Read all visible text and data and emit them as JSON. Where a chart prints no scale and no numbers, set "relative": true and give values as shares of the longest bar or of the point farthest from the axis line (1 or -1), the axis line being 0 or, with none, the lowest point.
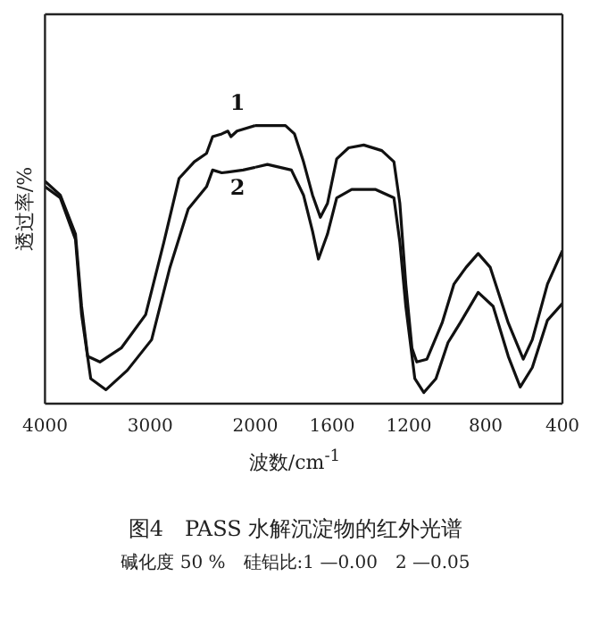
{
  "chart_data": [
    {
      "type": "line",
      "ylabel": "透过率/%",
      "relative": true,
      "xlim": [
        4000,
        2000
      ],
      "xticks": [
        4000,
        3000,
        2000
      ],
      "tick_labels": "x",
      "grid": false,
      "legend": false,
      "marker": "none",
      "line_style": "solid",
      "annotations": [
        "图4　PASS 水解沉淀物的红外光谱",
        "碱化度 50 %　硅铝比:1 —0.00　2 —0.05"
      ],
      "series": [
        {
          "name": "1",
          "color": "#111111",
          "x": [
            4000,
            3855,
            3710,
            3652,
            3594,
            3478,
            3275,
            3043,
            2870,
            2725,
            2580,
            2464,
            2406,
            2319,
            2261,
            2232,
            2174,
            2000
          ],
          "values": [
            0.8,
            0.75,
            0.61,
            0.35,
            0.17,
            0.15,
            0.2,
            0.32,
            0.58,
            0.81,
            0.87,
            0.9,
            0.96,
            0.97,
            0.98,
            0.96,
            0.98,
            1.0
          ]
        },
        {
          "name": "2",
          "color": "#111111",
          "x": [
            4000,
            3855,
            3710,
            3652,
            3565,
            3420,
            3217,
            2986,
            2812,
            2638,
            2464,
            2406,
            2319,
            2116,
            2000
          ],
          "values": [
            0.78,
            0.74,
            0.59,
            0.32,
            0.09,
            0.05,
            0.12,
            0.23,
            0.49,
            0.7,
            0.78,
            0.84,
            0.83,
            0.84,
            0.85
          ]
        }
      ]
    },
    {
      "type": "line",
      "xlabel": "波数/cm$^{-1}$",
      "relative": true,
      "xlim": [
        2000,
        400
      ],
      "xticks": [
        1600,
        1200,
        800,
        400
      ],
      "tick_labels": "x",
      "grid": false,
      "legend": false,
      "marker": "none",
      "line_style": "solid",
      "series": [
        {
          "color": "#111111",
          "x": [
            2000,
            1843,
            1796,
            1749,
            1702,
            1661,
            1624,
            1576,
            1514,
            1435,
            1341,
            1278,
            1247,
            1216,
            1184,
            1159,
            1106,
            1027,
            965,
            902,
            839,
            776,
            682,
            604,
            557,
            478,
            400
          ],
          "values": [
            1.0,
            1.0,
            0.97,
            0.87,
            0.75,
            0.67,
            0.72,
            0.88,
            0.92,
            0.93,
            0.91,
            0.87,
            0.72,
            0.43,
            0.2,
            0.15,
            0.16,
            0.29,
            0.43,
            0.49,
            0.54,
            0.49,
            0.29,
            0.16,
            0.23,
            0.43,
            0.55
          ]
        },
        {
          "color": "#111111",
          "x": [
            2000,
            1937,
            1812,
            1749,
            1702,
            1671,
            1624,
            1576,
            1498,
            1373,
            1278,
            1247,
            1216,
            1169,
            1122,
            1059,
            996,
            933,
            839,
            761,
            682,
            620,
            557,
            478,
            400
          ],
          "values": [
            0.85,
            0.86,
            0.84,
            0.75,
            0.62,
            0.52,
            0.61,
            0.74,
            0.77,
            0.77,
            0.74,
            0.58,
            0.35,
            0.09,
            0.04,
            0.09,
            0.22,
            0.29,
            0.4,
            0.35,
            0.17,
            0.06,
            0.13,
            0.3,
            0.36
          ]
        }
      ]
    }
  ]
}
